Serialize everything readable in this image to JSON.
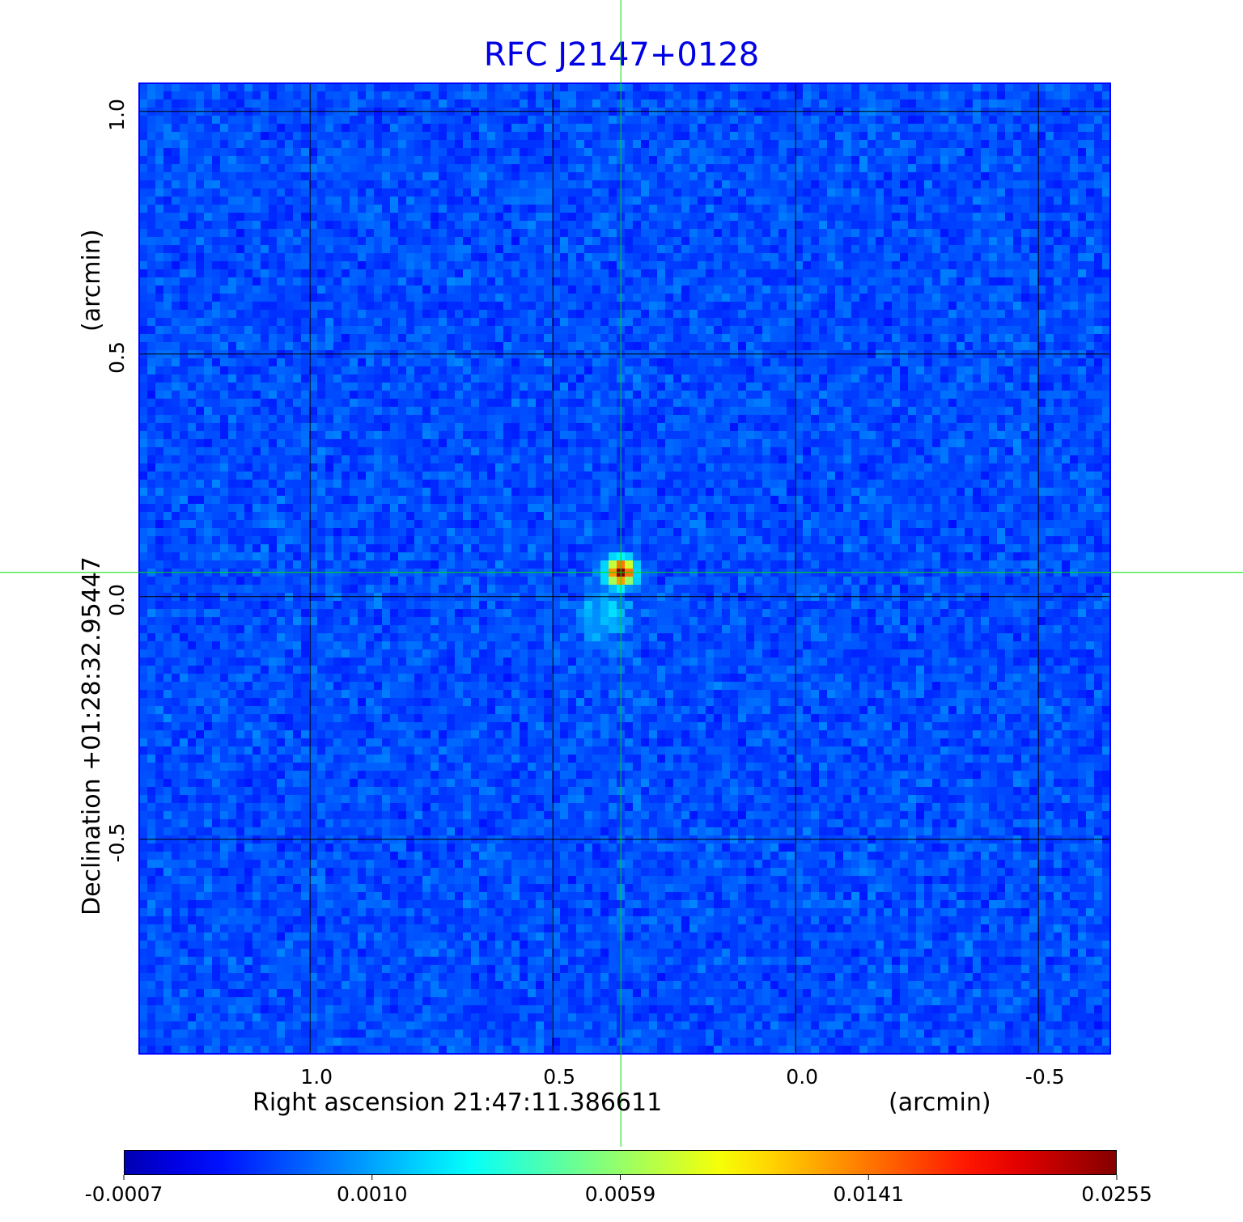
{
  "chart_data": {
    "type": "heatmap",
    "title": "RFC J2147+0128",
    "xlabel": "Right ascension  21:47:11.386611",
    "xunit": "(arcmin)",
    "ylabel": "Declination  +01:28:32.95447",
    "yunit": "(arcmin)",
    "xlim": [
      1.352,
      -0.648
    ],
    "ylim": [
      -0.942,
      1.058
    ],
    "xticks": [
      "1.0",
      "0.5",
      "0.0",
      "-0.5"
    ],
    "xtick_values": [
      1.0,
      0.5,
      0.0,
      -0.5
    ],
    "yticks": [
      "1.0",
      "0.5",
      "0.0",
      "-0.5"
    ],
    "ytick_values": [
      1.0,
      0.5,
      0.0,
      -0.5
    ],
    "grid": true,
    "colormap": "jet",
    "colorbar": {
      "ticks": [
        "-0.0007",
        "0.0010",
        "0.0059",
        "0.0141",
        "0.0255"
      ],
      "min": -0.0007,
      "max": 0.0255,
      "scale": "nonlinear"
    },
    "source_peak": {
      "x": 0.36,
      "y": 0.05,
      "value": 0.0255
    },
    "crosshair": {
      "x": 0.36,
      "y": 0.05,
      "color": "#00e000"
    },
    "colors": {
      "title": "#0000e6",
      "frame": "#0000ff",
      "grid": "#000000"
    }
  }
}
